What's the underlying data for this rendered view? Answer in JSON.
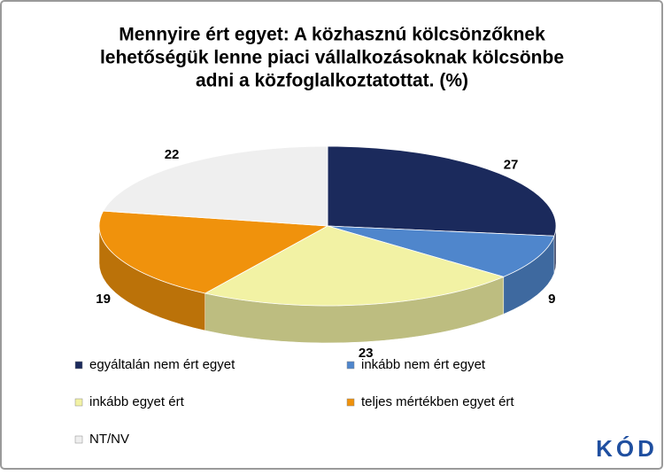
{
  "chart_data": {
    "type": "pie3d",
    "title": [
      "Mennyire ért egyet: A közhasznú kölcsönzőknek",
      "lehetőségük lenne piaci vállalkozásoknak kölcsönbe",
      "adni a közfoglalkoztatottat. (%)"
    ],
    "categories": [
      "egyáltalán nem ért egyet",
      "inkább nem ért egyet",
      "inkább egyet ért",
      "teljes mértékben egyet ért",
      "NT/NV"
    ],
    "values": [
      27,
      9,
      23,
      19,
      22
    ],
    "colors": [
      "#1b2a5c",
      "#4f86cc",
      "#f2f2a4",
      "#f0920c",
      "#efefef"
    ],
    "logo": "KÓD"
  }
}
